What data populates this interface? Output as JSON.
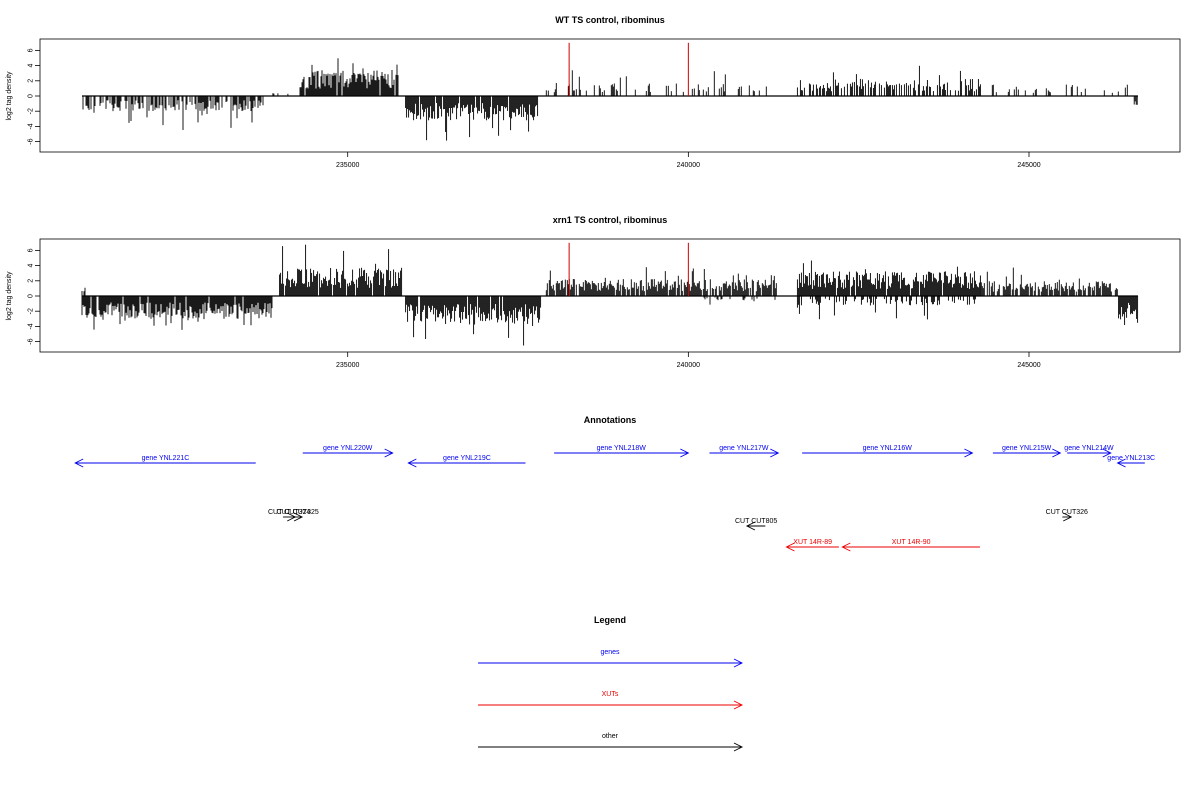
{
  "chart_data": [
    {
      "type": "bar",
      "title": "WT TS control, ribominus",
      "xlabel": "",
      "ylabel": "log2 tag density",
      "xlim": [
        231000,
        246700
      ],
      "ylim": [
        -7,
        7.5
      ],
      "x_ticks": [
        235000,
        240000,
        245000
      ],
      "y_ticks": [
        -6,
        -4,
        -2,
        0,
        2,
        4,
        6
      ],
      "grid": false,
      "regions": [
        {
          "start": 231100,
          "end": 233800,
          "strand": "minus",
          "typical": 1.6,
          "max": 4.5,
          "density": 0.55
        },
        {
          "start": 233800,
          "end": 234300,
          "strand": "plus",
          "typical": 0.5,
          "max": 1.0,
          "density": 0.05
        },
        {
          "start": 234300,
          "end": 235750,
          "strand": "plus",
          "typical": 2.8,
          "max": 5.4,
          "density": 0.95
        },
        {
          "start": 235850,
          "end": 237800,
          "strand": "minus",
          "typical": 2.6,
          "max": 5.9,
          "density": 0.95
        },
        {
          "start": 237900,
          "end": 241400,
          "strand": "plus",
          "typical": 1.4,
          "max": 3.5,
          "density": 0.25
        },
        {
          "start": 241600,
          "end": 244300,
          "strand": "plus",
          "typical": 1.8,
          "max": 4.0,
          "density": 0.55
        },
        {
          "start": 244300,
          "end": 246500,
          "strand": "plus",
          "typical": 1.2,
          "max": 2.8,
          "density": 0.2
        },
        {
          "start": 246500,
          "end": 246600,
          "strand": "minus",
          "typical": 1.5,
          "max": 3.0,
          "density": 0.6
        }
      ],
      "markers": [
        {
          "x": 238250,
          "value": 7.0,
          "color": "#cc0000"
        },
        {
          "x": 240000,
          "value": 7.0,
          "color": "#cc0000"
        }
      ]
    },
    {
      "type": "bar",
      "title": "xrn1 TS control, ribominus",
      "xlabel": "",
      "ylabel": "log2 tag density",
      "xlim": [
        231000,
        246700
      ],
      "ylim": [
        -7,
        7.5
      ],
      "x_ticks": [
        235000,
        240000,
        245000
      ],
      "y_ticks": [
        -6,
        -4,
        -2,
        0,
        2,
        4,
        6
      ],
      "grid": false,
      "regions": [
        {
          "start": 231100,
          "end": 233900,
          "strand": "minus",
          "typical": 2.4,
          "max": 4.5,
          "density": 0.95
        },
        {
          "start": 231100,
          "end": 231200,
          "strand": "plus",
          "typical": 1.0,
          "max": 1.5,
          "density": 0.3
        },
        {
          "start": 234000,
          "end": 235800,
          "strand": "plus",
          "typical": 3.0,
          "max": 6.8,
          "density": 0.95
        },
        {
          "start": 235850,
          "end": 237850,
          "strand": "minus",
          "typical": 3.0,
          "max": 6.6,
          "density": 0.95
        },
        {
          "start": 237900,
          "end": 241300,
          "strand": "plus",
          "typical": 1.8,
          "max": 4.0,
          "density": 0.85
        },
        {
          "start": 240200,
          "end": 241300,
          "strand": "minus",
          "typical": 0.5,
          "max": 1.2,
          "density": 0.2
        },
        {
          "start": 241600,
          "end": 244300,
          "strand": "plus",
          "typical": 2.6,
          "max": 5.7,
          "density": 0.95
        },
        {
          "start": 241600,
          "end": 244300,
          "strand": "minus",
          "typical": 1.0,
          "max": 3.3,
          "density": 0.4
        },
        {
          "start": 244300,
          "end": 246300,
          "strand": "plus",
          "typical": 1.6,
          "max": 3.8,
          "density": 0.7
        },
        {
          "start": 246300,
          "end": 246600,
          "strand": "minus",
          "typical": 2.5,
          "max": 4.0,
          "density": 0.9
        }
      ],
      "markers": [
        {
          "x": 238250,
          "value": 7.0,
          "color": "#cc0000"
        },
        {
          "x": 240000,
          "value": 7.0,
          "color": "#cc0000"
        }
      ]
    }
  ],
  "annotations": {
    "title": "Annotations",
    "features": [
      {
        "label": "gene YNL221C",
        "start": 231000,
        "end": 233650,
        "strand": "minus",
        "row": 0,
        "color": "#0000ee"
      },
      {
        "label": "gene YNL220W",
        "start": 234340,
        "end": 235660,
        "strand": "plus",
        "row": 1,
        "color": "#0000ee"
      },
      {
        "label": "gene YNL219C",
        "start": 235890,
        "end": 237610,
        "strand": "minus",
        "row": 0,
        "color": "#0000ee"
      },
      {
        "label": "gene YNL218W",
        "start": 238030,
        "end": 240000,
        "strand": "plus",
        "row": 1,
        "color": "#0000ee"
      },
      {
        "label": "gene YNL217W",
        "start": 240310,
        "end": 241320,
        "strand": "plus",
        "row": 1,
        "color": "#0000ee"
      },
      {
        "label": "gene YNL216W",
        "start": 241670,
        "end": 244170,
        "strand": "plus",
        "row": 1,
        "color": "#0000ee"
      },
      {
        "label": "gene YNL215W",
        "start": 244470,
        "end": 245460,
        "strand": "plus",
        "row": 1,
        "color": "#0000ee"
      },
      {
        "label": "gene YNL214W",
        "start": 245560,
        "end": 246200,
        "strand": "plus",
        "row": 1,
        "color": "#0000ee"
      },
      {
        "label": "gene YNL213C",
        "start": 246300,
        "end": 246700,
        "strand": "minus",
        "row": 0,
        "color": "#0000ee"
      },
      {
        "label": "CUT CUT324",
        "start": 234050,
        "end": 234230,
        "strand": "plus",
        "row": 2,
        "color": "#000000"
      },
      {
        "label": "CUT CUT325",
        "start": 234200,
        "end": 234330,
        "strand": "plus",
        "row": 2,
        "color": "#000000"
      },
      {
        "label": "CUT CUT326",
        "start": 245490,
        "end": 245620,
        "strand": "plus",
        "row": 2,
        "color": "#000000"
      },
      {
        "label": "CUT CUT805",
        "start": 240860,
        "end": 241130,
        "strand": "minus",
        "row": 3,
        "color": "#000000"
      },
      {
        "label": "XUT 14R-89",
        "start": 241440,
        "end": 242210,
        "strand": "minus",
        "row": 4,
        "color": "#ee0000"
      },
      {
        "label": "XUT 14R-90",
        "start": 242260,
        "end": 244280,
        "strand": "minus",
        "row": 4,
        "color": "#ee0000"
      }
    ]
  },
  "legend": {
    "title": "Legend",
    "items": [
      {
        "label": "genes",
        "color": "#0000ee"
      },
      {
        "label": "XUTs",
        "color": "#ee0000"
      },
      {
        "label": "other",
        "color": "#000000"
      }
    ]
  }
}
